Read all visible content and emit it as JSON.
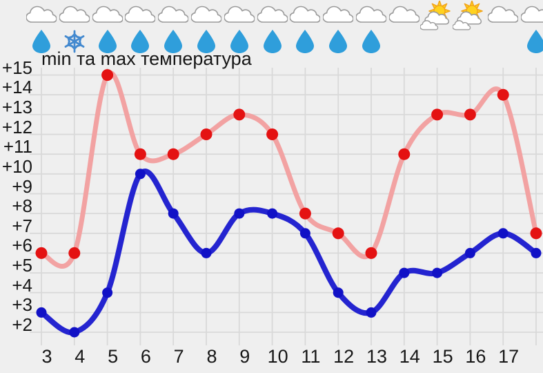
{
  "chart_data": {
    "type": "line",
    "title": "min та max температура",
    "xlabel": "",
    "ylabel": "",
    "x": [
      3,
      4,
      5,
      6,
      7,
      8,
      9,
      10,
      11,
      12,
      13,
      14,
      15,
      16,
      17,
      18
    ],
    "x_tick_labels": [
      "3",
      "4",
      "5",
      "6",
      "7",
      "8",
      "9",
      "10",
      "11",
      "12",
      "13",
      "14",
      "15",
      "16",
      "17"
    ],
    "y_ticks": [
      2,
      3,
      4,
      5,
      6,
      7,
      8,
      9,
      10,
      11,
      12,
      13,
      14,
      15
    ],
    "y_tick_labels": [
      "+2",
      "+3",
      "+4",
      "+5",
      "+6",
      "+7",
      "+8",
      "+9",
      "+10",
      "+11",
      "+12",
      "+13",
      "+14",
      "+15"
    ],
    "ylim": [
      1.3,
      15.4
    ],
    "grid": true,
    "legend": "none",
    "curve": "smooth",
    "series": [
      {
        "name": "max",
        "values": [
          6,
          6,
          15,
          11,
          11,
          12,
          13,
          12,
          8,
          7,
          6,
          11,
          13,
          13,
          14,
          7
        ],
        "line_color": "#f2a2a2",
        "marker_color": "#e41212"
      },
      {
        "name": "min",
        "values": [
          3,
          2,
          4,
          10,
          8,
          6,
          8,
          8,
          7,
          4,
          3,
          5,
          5,
          6,
          7,
          6
        ],
        "line_color": "#2424d0",
        "marker_color": "#1111c6"
      }
    ]
  },
  "weather": {
    "sky": [
      "cloudy",
      "cloudy",
      "cloudy",
      "cloudy",
      "cloudy",
      "cloudy",
      "cloudy",
      "cloudy",
      "cloudy",
      "cloudy",
      "cloudy",
      "cloudy",
      "partly-sunny",
      "partly-sunny",
      "cloudy",
      "cloudy"
    ],
    "precipitation": [
      "rain",
      "snow",
      "rain",
      "rain",
      "rain",
      "rain",
      "rain",
      "rain",
      "rain",
      "rain",
      "rain",
      "none",
      "none",
      "none",
      "none",
      "rain"
    ]
  },
  "colors": {
    "background": "#efefef",
    "gridline": "#d9d9d9",
    "text": "#161616",
    "max_marker": "#e41212",
    "max_line": "#f2a2a2",
    "min_marker": "#1111c6",
    "min_line": "#2424d0",
    "rain_drop": "#2f9edb",
    "snowflake": "#4389cf",
    "sun_fill": "#ffd21e",
    "sun_outline": "#f2a51b",
    "cloud_fill": "#ffffff",
    "cloud_outline": "#9a9a9a"
  }
}
